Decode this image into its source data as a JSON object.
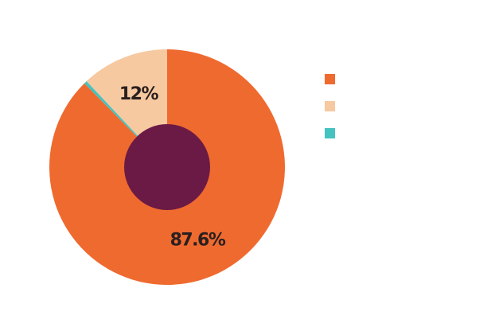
{
  "chart_data": {
    "type": "donut",
    "categories": [
      null,
      null,
      null
    ],
    "values": [
      87.6,
      12,
      0.4
    ],
    "value_labels": [
      "87.6%",
      "12%",
      null
    ],
    "colors": [
      "#ef6a2f",
      "#f6c9a0",
      "#45c3c0"
    ],
    "hole_color": "#6b1a45",
    "legend": "right"
  }
}
